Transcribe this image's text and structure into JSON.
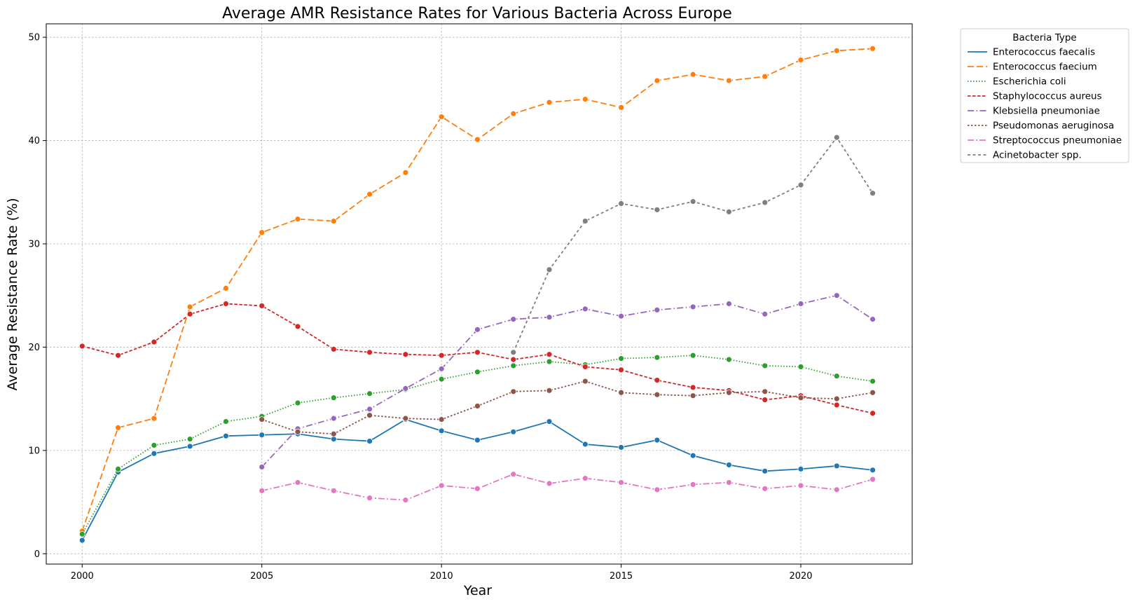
{
  "chart_data": {
    "type": "line",
    "title": "Average AMR Resistance Rates for Various Bacteria Across Europe",
    "xlabel": "Year",
    "ylabel": "Average Resistance Rate (%)",
    "xlim": [
      1999,
      2023.1
    ],
    "ylim": [
      -1,
      51.3
    ],
    "xticks": [
      2000,
      2005,
      2010,
      2015,
      2020
    ],
    "yticks": [
      0,
      10,
      20,
      30,
      40,
      50
    ],
    "grid": true,
    "legend": {
      "title": "Bacteria Type",
      "placement": "outside-top-right"
    },
    "series": [
      {
        "name": "Enterococcus faecalis",
        "color": "#1f77b4",
        "dash": "solid",
        "points": [
          [
            2000,
            1.3
          ],
          [
            2001,
            7.9
          ],
          [
            2002,
            9.7
          ],
          [
            2003,
            10.4
          ],
          [
            2004,
            11.4
          ],
          [
            2005,
            11.5
          ],
          [
            2006,
            11.6
          ],
          [
            2007,
            11.1
          ],
          [
            2008,
            10.9
          ],
          [
            2009,
            13.0
          ],
          [
            2010,
            11.9
          ],
          [
            2011,
            11.0
          ],
          [
            2012,
            11.8
          ],
          [
            2013,
            12.8
          ],
          [
            2014,
            10.6
          ],
          [
            2015,
            10.3
          ],
          [
            2016,
            11.0
          ],
          [
            2017,
            9.5
          ],
          [
            2018,
            8.6
          ],
          [
            2019,
            8.0
          ],
          [
            2020,
            8.2
          ],
          [
            2021,
            8.5
          ],
          [
            2022,
            8.1
          ]
        ]
      },
      {
        "name": "Enterococcus faecium",
        "color": "#ff7f0e",
        "dash": "dashed",
        "points": [
          [
            2000,
            2.2
          ],
          [
            2001,
            12.2
          ],
          [
            2002,
            13.1
          ],
          [
            2003,
            23.9
          ],
          [
            2004,
            25.7
          ],
          [
            2005,
            31.1
          ],
          [
            2006,
            32.4
          ],
          [
            2007,
            32.2
          ],
          [
            2008,
            34.8
          ],
          [
            2009,
            36.9
          ],
          [
            2010,
            42.3
          ],
          [
            2011,
            40.1
          ],
          [
            2012,
            42.6
          ],
          [
            2013,
            43.7
          ],
          [
            2014,
            44.0
          ],
          [
            2015,
            43.2
          ],
          [
            2016,
            45.8
          ],
          [
            2017,
            46.4
          ],
          [
            2018,
            45.8
          ],
          [
            2019,
            46.2
          ],
          [
            2020,
            47.8
          ],
          [
            2021,
            48.7
          ],
          [
            2022,
            48.9
          ]
        ]
      },
      {
        "name": "Escherichia coli",
        "color": "#2ca02c",
        "dash": "dotted",
        "points": [
          [
            2000,
            1.9
          ],
          [
            2001,
            8.2
          ],
          [
            2002,
            10.5
          ],
          [
            2003,
            11.1
          ],
          [
            2004,
            12.8
          ],
          [
            2005,
            13.3
          ],
          [
            2006,
            14.6
          ],
          [
            2007,
            15.1
          ],
          [
            2008,
            15.5
          ],
          [
            2009,
            15.9
          ],
          [
            2010,
            16.9
          ],
          [
            2011,
            17.6
          ],
          [
            2012,
            18.2
          ],
          [
            2013,
            18.6
          ],
          [
            2014,
            18.3
          ],
          [
            2015,
            18.9
          ],
          [
            2016,
            19.0
          ],
          [
            2017,
            19.2
          ],
          [
            2018,
            18.8
          ],
          [
            2019,
            18.2
          ],
          [
            2020,
            18.1
          ],
          [
            2021,
            17.2
          ],
          [
            2022,
            16.7
          ]
        ]
      },
      {
        "name": "Staphylococcus aureus",
        "color": "#d62728",
        "dash": "densedash",
        "points": [
          [
            2000,
            20.1
          ],
          [
            2001,
            19.2
          ],
          [
            2002,
            20.5
          ],
          [
            2003,
            23.2
          ],
          [
            2004,
            24.2
          ],
          [
            2005,
            24.0
          ],
          [
            2006,
            22.0
          ],
          [
            2007,
            19.8
          ],
          [
            2008,
            19.5
          ],
          [
            2009,
            19.3
          ],
          [
            2010,
            19.2
          ],
          [
            2011,
            19.5
          ],
          [
            2012,
            18.8
          ],
          [
            2013,
            19.3
          ],
          [
            2014,
            18.1
          ],
          [
            2015,
            17.8
          ],
          [
            2016,
            16.8
          ],
          [
            2017,
            16.1
          ],
          [
            2018,
            15.8
          ],
          [
            2019,
            14.9
          ],
          [
            2020,
            15.3
          ],
          [
            2021,
            14.4
          ],
          [
            2022,
            13.6
          ]
        ]
      },
      {
        "name": "Klebsiella pneumoniae",
        "color": "#9467bd",
        "dash": "dashdot",
        "points": [
          [
            2005,
            8.4
          ],
          [
            2006,
            12.1
          ],
          [
            2007,
            13.1
          ],
          [
            2008,
            14.0
          ],
          [
            2009,
            16.0
          ],
          [
            2010,
            17.9
          ],
          [
            2011,
            21.7
          ],
          [
            2012,
            22.7
          ],
          [
            2013,
            22.9
          ],
          [
            2014,
            23.7
          ],
          [
            2015,
            23.0
          ],
          [
            2016,
            23.6
          ],
          [
            2017,
            23.9
          ],
          [
            2018,
            24.2
          ],
          [
            2019,
            23.2
          ],
          [
            2020,
            24.2
          ],
          [
            2021,
            25.0
          ],
          [
            2022,
            22.7
          ]
        ]
      },
      {
        "name": "Pseudomonas aeruginosa",
        "color": "#8c564b",
        "dash": "densedot",
        "points": [
          [
            2005,
            13.0
          ],
          [
            2006,
            11.8
          ],
          [
            2007,
            11.6
          ],
          [
            2008,
            13.4
          ],
          [
            2009,
            13.1
          ],
          [
            2010,
            13.0
          ],
          [
            2011,
            14.3
          ],
          [
            2012,
            15.7
          ],
          [
            2013,
            15.8
          ],
          [
            2014,
            16.7
          ],
          [
            2015,
            15.6
          ],
          [
            2016,
            15.4
          ],
          [
            2017,
            15.3
          ],
          [
            2018,
            15.6
          ],
          [
            2019,
            15.7
          ],
          [
            2020,
            15.1
          ],
          [
            2021,
            15.0
          ],
          [
            2022,
            15.6
          ]
        ]
      },
      {
        "name": "Streptococcus pneumoniae",
        "color": "#e377c2",
        "dash": "longdashdot",
        "points": [
          [
            2005,
            6.1
          ],
          [
            2006,
            6.9
          ],
          [
            2007,
            6.1
          ],
          [
            2008,
            5.4
          ],
          [
            2009,
            5.2
          ],
          [
            2010,
            6.6
          ],
          [
            2011,
            6.3
          ],
          [
            2012,
            7.7
          ],
          [
            2013,
            6.8
          ],
          [
            2014,
            7.3
          ],
          [
            2015,
            6.9
          ],
          [
            2016,
            6.2
          ],
          [
            2017,
            6.7
          ],
          [
            2018,
            6.9
          ],
          [
            2019,
            6.3
          ],
          [
            2020,
            6.6
          ],
          [
            2021,
            6.2
          ],
          [
            2022,
            7.2
          ]
        ]
      },
      {
        "name": "Acinetobacter spp.",
        "color": "#7f7f7f",
        "dash": "shortdash",
        "points": [
          [
            2012,
            19.5
          ],
          [
            2013,
            27.5
          ],
          [
            2014,
            32.2
          ],
          [
            2015,
            33.9
          ],
          [
            2016,
            33.3
          ],
          [
            2017,
            34.1
          ],
          [
            2018,
            33.1
          ],
          [
            2019,
            34.0
          ],
          [
            2020,
            35.7
          ],
          [
            2021,
            40.3
          ],
          [
            2022,
            34.9
          ]
        ]
      }
    ]
  }
}
